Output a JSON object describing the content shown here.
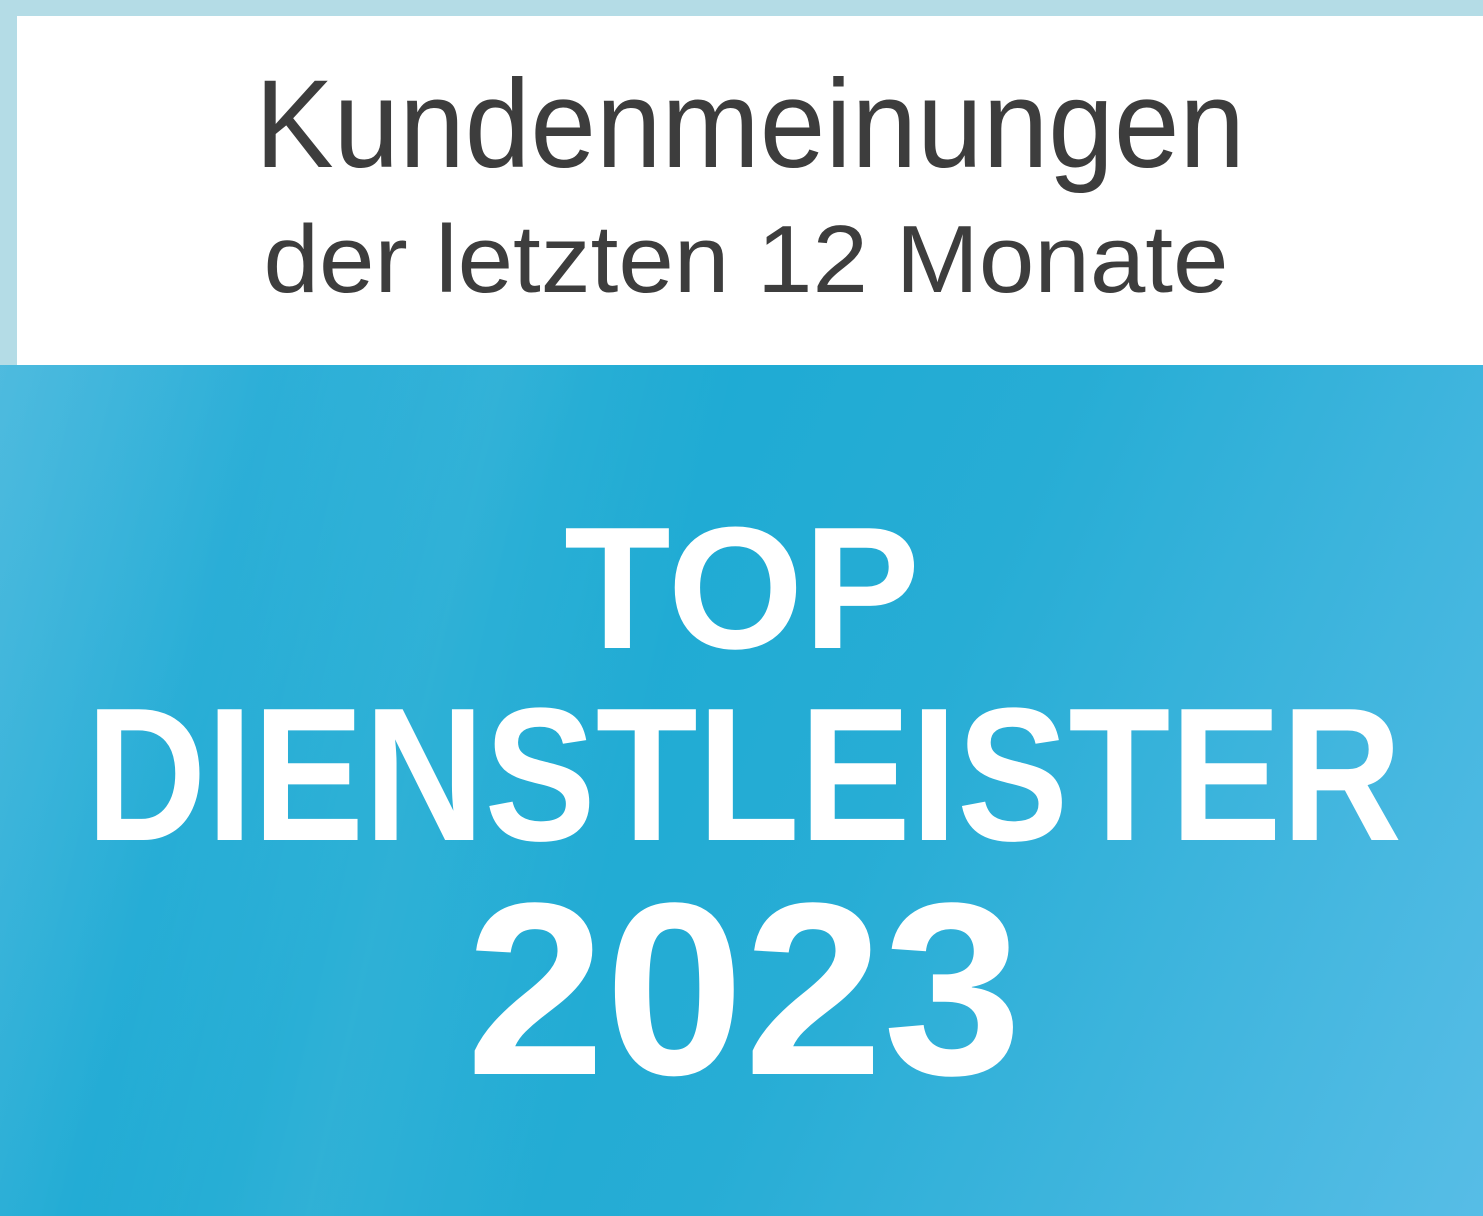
{
  "header": {
    "title": "Kundenmeinungen",
    "subtitle": "der letzten 12 Monate"
  },
  "award": {
    "line1": "TOP",
    "line2": "DIENSTLEISTER",
    "line3": "2023",
    "year": "2023"
  },
  "colors": {
    "header_text": "#3d3d3d",
    "panel_background": "#ffffff",
    "frame_border": "#b4dce6",
    "award_text": "#ffffff",
    "award_blue_top": "#3ab3db",
    "award_blue_dark": "#1caad3",
    "award_blue_mid": "#27add5",
    "award_blue_light": "#57bde6"
  }
}
